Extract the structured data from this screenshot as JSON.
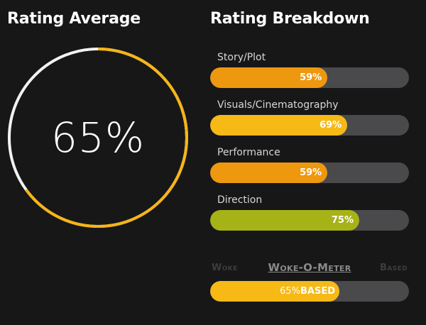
{
  "rating_average": {
    "title": "Rating Average",
    "value_label": "65%",
    "percent": 65,
    "colors": {
      "progress": "#f6b416",
      "remaining": "#f2f2f2"
    }
  },
  "rating_breakdown": {
    "title": "Rating Breakdown",
    "items": [
      {
        "label": "Story/Plot",
        "value_label": "59%",
        "percent": 59,
        "color": "#ee980f"
      },
      {
        "label": "Visuals/Cinematography",
        "value_label": "69%",
        "percent": 69,
        "color": "#f6b916"
      },
      {
        "label": "Performance",
        "value_label": "59%",
        "percent": 59,
        "color": "#ee980f"
      },
      {
        "label": "Direction",
        "value_label": "75%",
        "percent": 75,
        "color": "#a6b317"
      }
    ],
    "track_color": "#4a4a4c"
  },
  "woke_meter": {
    "title": "Woke-O-Meter",
    "left_label": "Woke",
    "right_label": "Based",
    "value_number": "65%",
    "value_word": "BASED",
    "percent": 65,
    "color": "#f6b916"
  }
}
